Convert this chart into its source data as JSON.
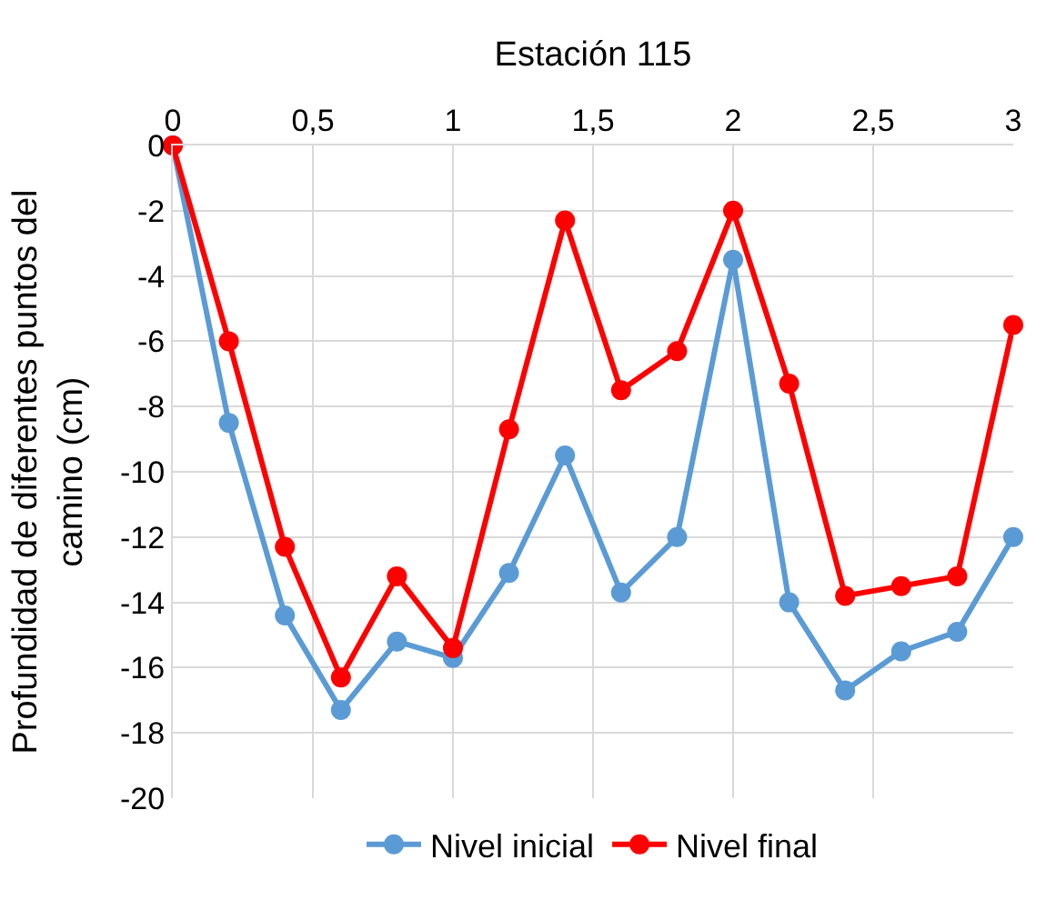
{
  "chart_data": {
    "type": "line",
    "xlabel": "Estación 115",
    "ylabel": "Profundidad de diferentes puntos del camino (cm)",
    "x": [
      0,
      0.2,
      0.4,
      0.6,
      0.8,
      1.0,
      1.2,
      1.4,
      1.6,
      1.8,
      2.0,
      2.2,
      2.4,
      2.6,
      2.8,
      3.0
    ],
    "series": [
      {
        "name": "Nivel inicial",
        "color": "#5b9bd5",
        "values": [
          0,
          -8.5,
          -14.4,
          -17.3,
          -15.2,
          -15.7,
          -13.1,
          -9.5,
          -13.7,
          -12.0,
          -3.5,
          -14.0,
          -16.7,
          -15.5,
          -14.9,
          -12.0
        ]
      },
      {
        "name": "Nivel final",
        "color": "#ff0000",
        "values": [
          0,
          -6.0,
          -12.3,
          -16.3,
          -13.2,
          -15.4,
          -8.7,
          -2.3,
          -7.5,
          -6.3,
          -2.0,
          -7.3,
          -13.8,
          -13.5,
          -13.2,
          -5.5
        ]
      }
    ],
    "xlim": [
      0,
      3
    ],
    "xticks": [
      0,
      {
        "value": 0.5,
        "label": "0,5"
      },
      1,
      {
        "value": 1.5,
        "label": "1,5"
      },
      2,
      {
        "value": 2.5,
        "label": "2,5"
      },
      3
    ],
    "ylim": [
      -20,
      0
    ],
    "yticks": [
      0,
      -2,
      -4,
      -6,
      -8,
      -10,
      -12,
      -14,
      -16,
      -18,
      -20
    ],
    "grid": true,
    "legend": "bottom",
    "marker": "circle",
    "line_style": "solid"
  }
}
